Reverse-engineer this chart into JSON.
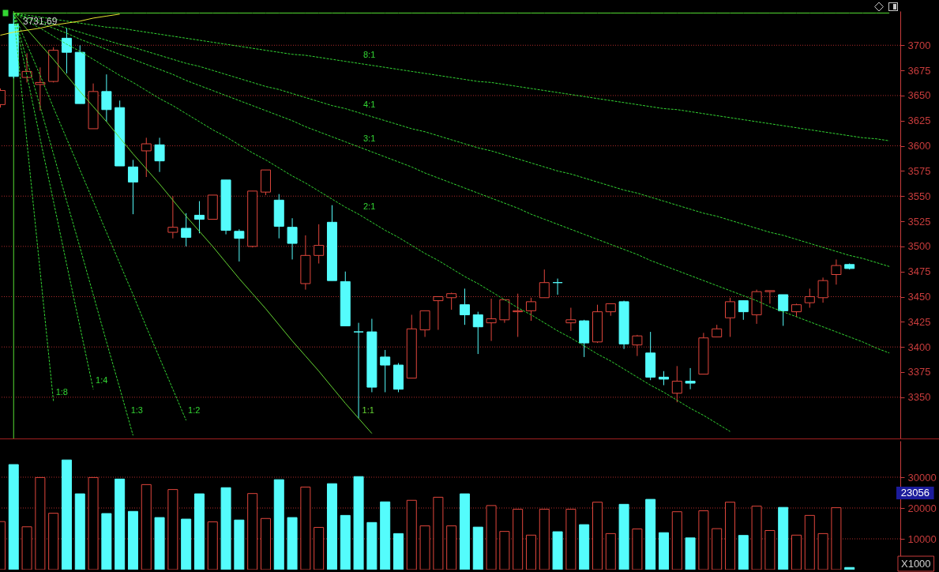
{
  "chart_data": [
    {
      "type": "candlestick",
      "categories": [
        null,
        null,
        null,
        null,
        null,
        null,
        null,
        null,
        null,
        null,
        null,
        null,
        null,
        null,
        null,
        null,
        null,
        null,
        null,
        null,
        null,
        null,
        null,
        null,
        null,
        null,
        null,
        null,
        null,
        null,
        null,
        null,
        null,
        null,
        null,
        null,
        null,
        null,
        null,
        null,
        null,
        null,
        null,
        null,
        null,
        null,
        null,
        null,
        null,
        null,
        null,
        null,
        null,
        null,
        null,
        null,
        null,
        null,
        null,
        null,
        null,
        null,
        null,
        null,
        null,
        null,
        null,
        null
      ],
      "ohlc": [
        [
          3641,
          3657,
          3638,
          3655
        ],
        [
          3721,
          3731.69,
          3667,
          3669
        ],
        [
          3668,
          3692,
          3663,
          3674
        ],
        [
          3661,
          3678,
          3635,
          3663
        ],
        [
          3664,
          3698,
          3663,
          3695
        ],
        [
          3707,
          3717,
          3672,
          3693
        ],
        [
          3693,
          3700,
          3642,
          3642
        ],
        [
          3617,
          3662,
          3617,
          3654
        ],
        [
          3654,
          3671,
          3624,
          3636
        ],
        [
          3638,
          3645,
          3580,
          3580
        ],
        [
          3579,
          3586,
          3532,
          3564
        ],
        [
          3595,
          3608,
          3569,
          3602
        ],
        [
          3601,
          3608,
          3574,
          3585
        ],
        [
          3514,
          3550,
          3508,
          3519
        ],
        [
          3518,
          3533,
          3500,
          3509
        ],
        [
          3531,
          3545,
          3513,
          3527
        ],
        [
          3527,
          3551,
          3527,
          3551
        ],
        [
          3566,
          3566,
          3512,
          3516
        ],
        [
          3515,
          3517,
          3485,
          3508
        ],
        [
          3500,
          3555,
          3499,
          3555
        ],
        [
          3554,
          3576,
          3551,
          3576
        ],
        [
          3546,
          3552,
          3508,
          3520
        ],
        [
          3519,
          3528,
          3487,
          3503
        ],
        [
          3463,
          3511,
          3457,
          3491
        ],
        [
          3491,
          3522,
          3483,
          3501
        ],
        [
          3524,
          3541,
          3466,
          3466
        ],
        [
          3465,
          3475,
          3421,
          3421
        ],
        [
          3415,
          3424,
          3329,
          3415
        ],
        [
          3415,
          3428,
          3355,
          3360
        ],
        [
          3390,
          3397,
          3355,
          3382
        ],
        [
          3382,
          3384,
          3355,
          3358
        ],
        [
          3369,
          3432,
          3369,
          3418
        ],
        [
          3417,
          3436,
          3410,
          3436
        ],
        [
          3446,
          3450,
          3417,
          3450
        ],
        [
          3449,
          3454,
          3437,
          3453
        ],
        [
          3442,
          3458,
          3422,
          3432
        ],
        [
          3432,
          3435,
          3393,
          3420
        ],
        [
          3424,
          3448,
          3406,
          3428
        ],
        [
          3427,
          3447,
          3424,
          3447
        ],
        [
          3435,
          3453,
          3410,
          3436
        ],
        [
          3436,
          3449,
          3426,
          3445
        ],
        [
          3449,
          3477,
          3449,
          3464
        ],
        [
          3464,
          3468,
          3452,
          3464
        ],
        [
          3424,
          3439,
          3416,
          3427
        ],
        [
          3426,
          3427,
          3390,
          3404
        ],
        [
          3405,
          3442,
          3404,
          3435
        ],
        [
          3435,
          3443,
          3431,
          3443
        ],
        [
          3445,
          3446,
          3398,
          3403
        ],
        [
          3402,
          3412,
          3391,
          3411
        ],
        [
          3394,
          3415,
          3367,
          3370
        ],
        [
          3370,
          3376,
          3362,
          3368
        ],
        [
          3354,
          3381,
          3345,
          3366
        ],
        [
          3366,
          3379,
          3358,
          3364
        ],
        [
          3373,
          3414,
          3373,
          3409
        ],
        [
          3410,
          3422,
          3410,
          3418
        ],
        [
          3429,
          3449,
          3410,
          3445
        ],
        [
          3446,
          3446,
          3427,
          3435
        ],
        [
          3432,
          3457,
          3423,
          3455
        ],
        [
          3455,
          3456,
          3443,
          3456
        ],
        [
          3452,
          3452,
          3421,
          3436
        ],
        [
          3435,
          3443,
          3430,
          3442
        ],
        [
          3444,
          3458,
          3439,
          3450
        ],
        [
          3449,
          3469,
          3444,
          3466
        ],
        [
          3472,
          3487,
          3462,
          3481
        ],
        [
          3482,
          3483,
          3477,
          3478
        ],
        null,
        null,
        null
      ],
      "colors": [
        "#e0463c",
        "#54fcfc",
        "#e0463c",
        "#e0463c",
        "#e0463c",
        "#54fcfc",
        "#54fcfc",
        "#e0463c",
        "#54fcfc",
        "#54fcfc",
        "#54fcfc",
        "#e0463c",
        "#54fcfc",
        "#e0463c",
        "#54fcfc",
        "#54fcfc",
        "#e0463c",
        "#54fcfc",
        "#54fcfc",
        "#e0463c",
        "#e0463c",
        "#54fcfc",
        "#54fcfc",
        "#e0463c",
        "#e0463c",
        "#54fcfc",
        "#54fcfc",
        "#54fcfc",
        "#54fcfc",
        "#54fcfc",
        "#54fcfc",
        "#e0463c",
        "#e0463c",
        "#e0463c",
        "#e0463c",
        "#54fcfc",
        "#54fcfc",
        "#e0463c",
        "#e0463c",
        "#e0463c",
        "#e0463c",
        "#e0463c",
        "#54fcfc",
        "#e0463c",
        "#54fcfc",
        "#e0463c",
        "#e0463c",
        "#54fcfc",
        "#e0463c",
        "#54fcfc",
        "#54fcfc",
        "#e0463c",
        "#54fcfc",
        "#e0463c",
        "#e0463c",
        "#e0463c",
        "#54fcfc",
        "#e0463c",
        "#e0463c",
        "#54fcfc",
        "#e0463c",
        "#e0463c",
        "#e0463c",
        "#e0463c",
        "#54fcfc",
        null,
        null,
        null
      ],
      "series": [
        {
          "type": "line",
          "name": "8:1",
          "color": "#33d633",
          "line_style": "dashed",
          "values": [
            null,
            3732,
            3730,
            3728,
            3726,
            3724,
            3722,
            3720,
            3718,
            3717,
            3715,
            3713,
            3711,
            3709,
            3707,
            3705,
            3703,
            3701,
            3699,
            3697,
            3695,
            3693,
            3691,
            3690,
            3688,
            3686,
            3684,
            3682,
            3680,
            3678,
            3676,
            3674,
            3672,
            3670,
            3668,
            3666,
            3664,
            3663,
            3661,
            3659,
            3657,
            3655,
            3653,
            3651,
            3649,
            3647,
            3645,
            3643,
            3641,
            3639,
            3637,
            3636,
            3634,
            3632,
            3630,
            3628,
            3626,
            3624,
            3622,
            3620,
            3618,
            3616,
            3614,
            3612,
            3610,
            3608,
            3607,
            3605
          ]
        },
        {
          "type": "line",
          "name": "4:1",
          "color": "#33d633",
          "line_style": "dashed",
          "values": [
            null,
            3732,
            3728,
            3724,
            3721,
            3717,
            3713,
            3709,
            3705,
            3701,
            3698,
            3694,
            3690,
            3686,
            3682,
            3679,
            3675,
            3671,
            3667,
            3663,
            3659,
            3656,
            3652,
            3648,
            3644,
            3640,
            3637,
            3633,
            3629,
            3625,
            3621,
            3617,
            3614,
            3610,
            3606,
            3602,
            3598,
            3595,
            3591,
            3587,
            3583,
            3579,
            3575,
            3572,
            3568,
            3564,
            3560,
            3556,
            3553,
            3549,
            3545,
            3541,
            3537,
            3533,
            3530,
            3526,
            3522,
            3518,
            3514,
            3511,
            3507,
            3503,
            3499,
            3495,
            3491,
            3488,
            3484,
            3480
          ]
        },
        {
          "type": "line",
          "name": "3:1",
          "color": "#33d633",
          "line_style": "dashed",
          "values": [
            null,
            3732,
            3727,
            3722,
            3717,
            3712,
            3706,
            3701,
            3696,
            3691,
            3686,
            3681,
            3676,
            3671,
            3665,
            3660,
            3655,
            3650,
            3645,
            3640,
            3635,
            3630,
            3625,
            3619,
            3614,
            3609,
            3604,
            3599,
            3594,
            3589,
            3584,
            3579,
            3573,
            3568,
            3563,
            3558,
            3553,
            3548,
            3543,
            3538,
            3532,
            3527,
            3522,
            3517,
            3512,
            3507,
            3502,
            3497,
            3492,
            3486,
            3481,
            3476,
            3471,
            3466,
            3461,
            3456,
            3451,
            3446,
            3440,
            3435,
            3430,
            3425,
            3420,
            3415,
            3410,
            3405,
            3399,
            3394
          ]
        },
        {
          "type": "line",
          "name": "2:1",
          "color": "#33d633",
          "line_style": "dashed",
          "values": [
            null,
            3732,
            3724,
            3717,
            3709,
            3701,
            3694,
            3686,
            3678,
            3670,
            3663,
            3655,
            3647,
            3640,
            3632,
            3624,
            3616,
            3609,
            3601,
            3593,
            3586,
            3578,
            3570,
            3563,
            3555,
            3547,
            3539,
            3532,
            3524,
            3516,
            3509,
            3501,
            3493,
            3486,
            3478,
            3470,
            3463,
            3455,
            3447,
            3439,
            3432,
            3424,
            3416,
            3409,
            3401,
            3393,
            3386,
            3378,
            3370,
            3362,
            3355,
            3347,
            3339,
            3332,
            3324,
            3316,
            null,
            null,
            null,
            null,
            null,
            null,
            null,
            null,
            null,
            null,
            null,
            null
          ]
        },
        {
          "type": "line",
          "name": "1:1",
          "color": "#66d633",
          "line_style": "solid",
          "values": [
            null,
            3732,
            3716,
            3701,
            3686,
            3670,
            3654,
            3639,
            3624,
            3608,
            3592,
            3577,
            3562,
            3546,
            3530,
            3515,
            3500,
            3484,
            3468,
            3453,
            3438,
            3422,
            3406,
            3391,
            3376,
            3360,
            3344,
            3329,
            3314,
            null,
            null,
            null,
            null,
            null,
            null,
            null,
            null,
            null,
            null,
            null,
            null,
            null,
            null,
            null,
            null,
            null,
            null,
            null,
            null,
            null,
            null,
            null,
            null,
            null,
            null,
            null,
            null,
            null,
            null,
            null,
            null,
            null,
            null,
            null,
            null,
            null,
            null,
            null
          ]
        },
        {
          "type": "line",
          "name": "1:2",
          "color": "#33d633",
          "line_style": "dashed",
          "values": [
            null,
            3732,
            3701,
            3670,
            3638,
            3607,
            3576,
            3545,
            3514,
            3483,
            3452,
            3420,
            3389,
            3358,
            3327,
            null,
            null,
            null,
            null,
            null,
            null,
            null,
            null,
            null,
            null,
            null,
            null,
            null,
            null,
            null,
            null,
            null,
            null,
            null,
            null,
            null,
            null,
            null,
            null,
            null,
            null,
            null,
            null,
            null,
            null,
            null,
            null,
            null,
            null,
            null,
            null,
            null,
            null,
            null,
            null,
            null,
            null,
            null,
            null,
            null,
            null,
            null,
            null,
            null,
            null,
            null,
            null,
            null
          ]
        },
        {
          "type": "line",
          "name": "1:3",
          "color": "#33d633",
          "line_style": "dashed",
          "values": [
            null,
            3732,
            3685,
            3639,
            3592,
            3545,
            3499,
            3452,
            3405,
            3359,
            3312,
            null,
            null,
            null,
            null,
            null,
            null,
            null,
            null,
            null,
            null,
            null,
            null,
            null,
            null,
            null,
            null,
            null,
            null,
            null,
            null,
            null,
            null,
            null,
            null,
            null,
            null,
            null,
            null,
            null,
            null,
            null,
            null,
            null,
            null,
            null,
            null,
            null,
            null,
            null,
            null,
            null,
            null,
            null,
            null,
            null,
            null,
            null,
            null,
            null,
            null,
            null,
            null,
            null,
            null,
            null,
            null,
            null
          ]
        },
        {
          "type": "line",
          "name": "1:4",
          "color": "#33d633",
          "line_style": "dashed",
          "values": [
            null,
            3732,
            3670,
            3607,
            3545,
            3482,
            3420,
            3358,
            null,
            null,
            null,
            null,
            null,
            null,
            null,
            null,
            null,
            null,
            null,
            null,
            null,
            null,
            null,
            null,
            null,
            null,
            null,
            null,
            null,
            null,
            null,
            null,
            null,
            null,
            null,
            null,
            null,
            null,
            null,
            null,
            null,
            null,
            null,
            null,
            null,
            null,
            null,
            null,
            null,
            null,
            null,
            null,
            null,
            null,
            null,
            null,
            null,
            null,
            null,
            null,
            null,
            null,
            null,
            null,
            null,
            null,
            null,
            null
          ]
        },
        {
          "type": "line",
          "name": "1:8",
          "color": "#33d633",
          "line_style": "dashed",
          "values": [
            null,
            3732,
            3604,
            3475,
            3346,
            null,
            null,
            null,
            null,
            null,
            null,
            null,
            null,
            null,
            null,
            null,
            null,
            null,
            null,
            null,
            null,
            null,
            null,
            null,
            null,
            null,
            null,
            null,
            null,
            null,
            null,
            null,
            null,
            null,
            null,
            null,
            null,
            null,
            null,
            null,
            null,
            null,
            null,
            null,
            null,
            null,
            null,
            null,
            null,
            null,
            null,
            null,
            null,
            null,
            null,
            null,
            null,
            null,
            null,
            null,
            null,
            null,
            null,
            null,
            null,
            null,
            null,
            null
          ]
        },
        {
          "type": "line",
          "color": "#55dd33",
          "line_style": "solid",
          "values": [
            null,
            3732,
            3732,
            3732,
            3732,
            3732,
            3732,
            3732,
            3732,
            3732,
            3732,
            3732,
            3732,
            3732,
            3732,
            3732,
            3732,
            3732,
            3732,
            3732,
            3732,
            3732,
            3732,
            3732,
            3732,
            3732,
            3732,
            3732,
            3732,
            3732,
            3732,
            3732,
            3732,
            3732,
            3732,
            3732,
            3732,
            3732,
            3732,
            3732,
            3732,
            3732,
            3732,
            3732,
            3732,
            3732,
            3732,
            3732,
            3732,
            3732,
            3732,
            3732,
            3732,
            3732,
            3732,
            3732,
            3732,
            3732,
            3732,
            3732,
            3732,
            3732,
            3732,
            3732,
            3732,
            3732,
            3732,
            3732
          ]
        },
        {
          "type": "line",
          "color": "#e6e632",
          "line_style": "solid",
          "values": [
            3710,
            3713,
            3715,
            3717,
            3720,
            3722,
            3724,
            3727,
            3729,
            3731,
            null,
            null,
            null,
            null,
            null,
            null,
            null,
            null,
            null,
            null,
            null,
            null,
            null,
            null,
            null,
            null,
            null,
            null,
            null,
            null,
            null,
            null,
            null,
            null,
            null,
            null,
            null,
            null,
            null,
            null,
            null,
            null,
            null,
            null,
            null,
            null,
            null,
            null,
            null,
            null,
            null,
            null,
            null,
            null,
            null,
            null,
            null,
            null,
            null,
            null,
            null,
            null,
            null,
            null,
            null,
            null,
            null,
            null
          ]
        }
      ],
      "ylim": [
        3309,
        3734
      ],
      "yticks": [
        3350,
        3375,
        3400,
        3425,
        3450,
        3475,
        3500,
        3525,
        3550,
        3575,
        3600,
        3625,
        3650,
        3675,
        3700
      ],
      "grid": "y",
      "tick_labels": "y",
      "annotations": [
        {
          "text": "3731.69",
          "y": 3731.69
        }
      ]
    },
    {
      "type": "bar",
      "categories": [
        null,
        null,
        null,
        null,
        null,
        null,
        null,
        null,
        null,
        null,
        null,
        null,
        null,
        null,
        null,
        null,
        null,
        null,
        null,
        null,
        null,
        null,
        null,
        null,
        null,
        null,
        null,
        null,
        null,
        null,
        null,
        null,
        null,
        null,
        null,
        null,
        null,
        null,
        null,
        null,
        null,
        null,
        null,
        null,
        null,
        null,
        null,
        null,
        null,
        null,
        null,
        null,
        null,
        null,
        null,
        null,
        null,
        null,
        null,
        null,
        null,
        null,
        null,
        null,
        null,
        null,
        null,
        null
      ],
      "values": [
        15600,
        34100,
        13900,
        29900,
        18300,
        35600,
        24600,
        29900,
        18200,
        29400,
        18900,
        27600,
        16900,
        26000,
        16400,
        24600,
        15500,
        26600,
        16100,
        24700,
        16600,
        29200,
        16900,
        26800,
        13700,
        27900,
        17600,
        30200,
        15300,
        22000,
        11700,
        22500,
        14200,
        23500,
        14200,
        24600,
        13800,
        20800,
        12400,
        19600,
        11200,
        19600,
        12300,
        19600,
        14600,
        21900,
        11700,
        21200,
        13200,
        22800,
        12000,
        18800,
        10300,
        19100,
        13300,
        21900,
        11100,
        20600,
        12700,
        20200,
        11200,
        17600,
        11700,
        20100,
        700,
        null,
        null,
        null
      ],
      "colors": [
        "#e0463c",
        "#54fcfc",
        "#e0463c",
        "#e0463c",
        "#e0463c",
        "#54fcfc",
        "#54fcfc",
        "#e0463c",
        "#54fcfc",
        "#54fcfc",
        "#54fcfc",
        "#e0463c",
        "#54fcfc",
        "#e0463c",
        "#54fcfc",
        "#54fcfc",
        "#e0463c",
        "#54fcfc",
        "#54fcfc",
        "#e0463c",
        "#e0463c",
        "#54fcfc",
        "#54fcfc",
        "#e0463c",
        "#e0463c",
        "#54fcfc",
        "#54fcfc",
        "#54fcfc",
        "#54fcfc",
        "#54fcfc",
        "#54fcfc",
        "#e0463c",
        "#e0463c",
        "#e0463c",
        "#e0463c",
        "#54fcfc",
        "#54fcfc",
        "#e0463c",
        "#e0463c",
        "#e0463c",
        "#e0463c",
        "#e0463c",
        "#54fcfc",
        "#e0463c",
        "#54fcfc",
        "#e0463c",
        "#e0463c",
        "#54fcfc",
        "#e0463c",
        "#54fcfc",
        "#54fcfc",
        "#e0463c",
        "#54fcfc",
        "#e0463c",
        "#e0463c",
        "#e0463c",
        "#54fcfc",
        "#e0463c",
        "#e0463c",
        "#54fcfc",
        "#e0463c",
        "#e0463c",
        "#e0463c",
        "#e0463c",
        "#54fcfc",
        null,
        null,
        null
      ],
      "ylim": [
        0,
        41800
      ],
      "yticks": [
        10000,
        20000,
        30000
      ],
      "grid": "y",
      "tick_labels": "y",
      "annotations": [
        "23056",
        "X1000"
      ]
    }
  ]
}
